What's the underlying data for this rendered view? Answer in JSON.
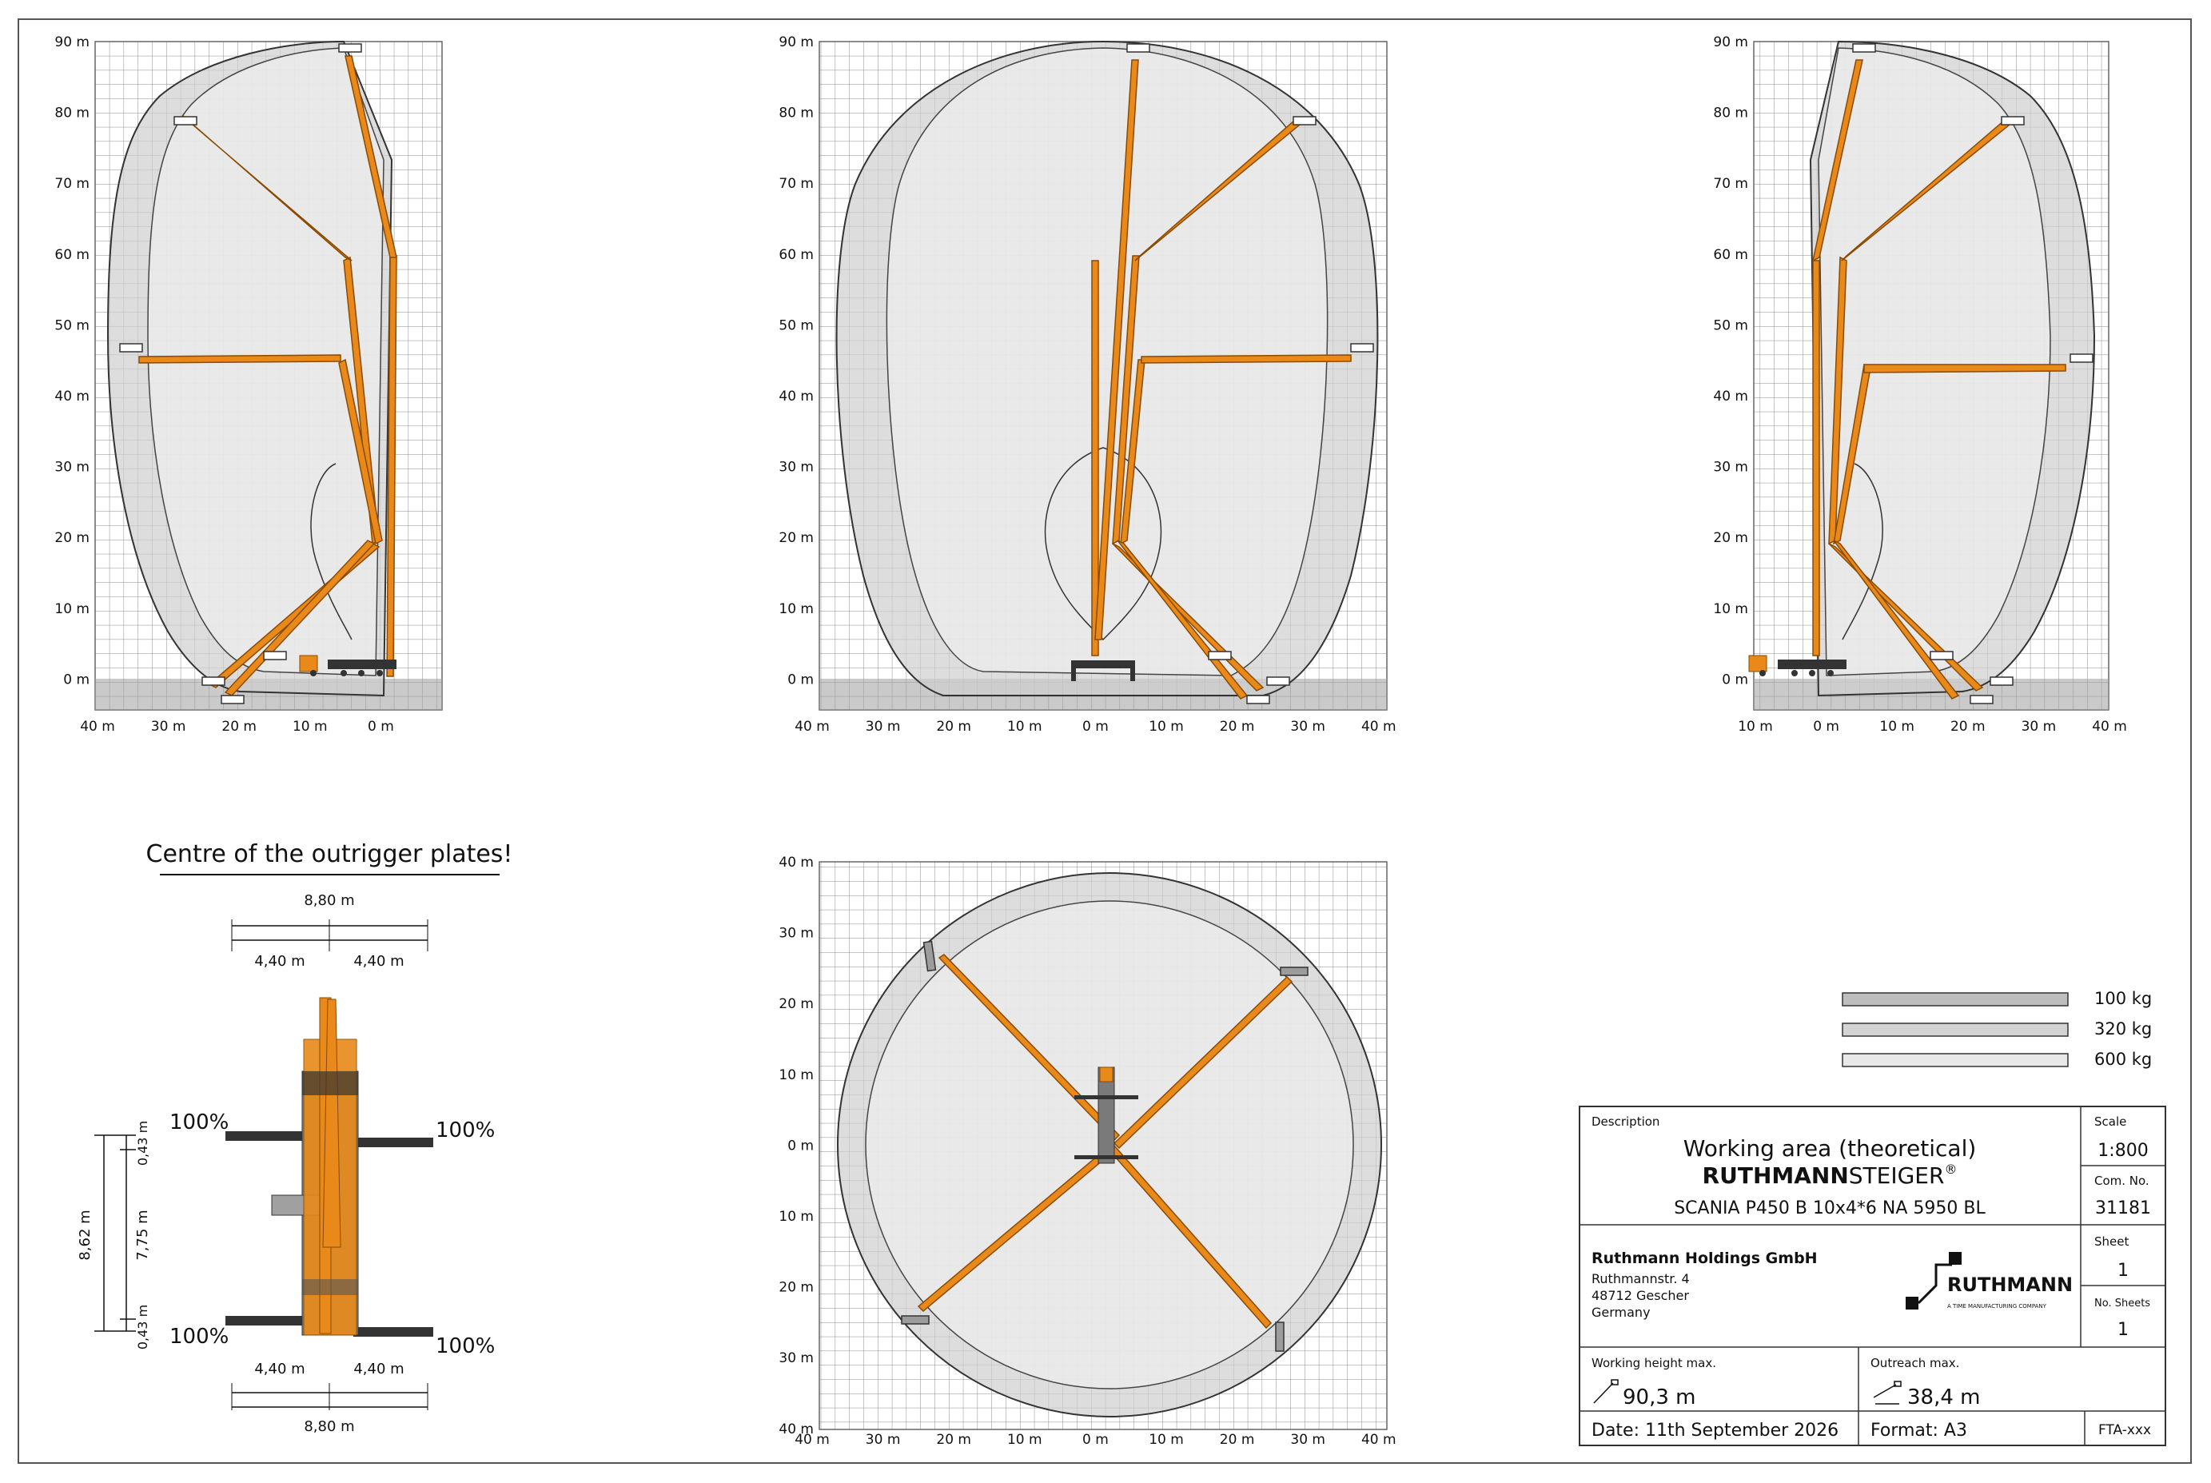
{
  "views": {
    "side_left": {
      "y_ticks": [
        "90 m",
        "80 m",
        "70 m",
        "60 m",
        "50 m",
        "40 m",
        "30 m",
        "20 m",
        "10 m",
        "0 m"
      ],
      "x_ticks": [
        "40 m",
        "30 m",
        "20 m",
        "10 m",
        "0 m"
      ]
    },
    "front": {
      "y_ticks": [
        "90 m",
        "80 m",
        "70 m",
        "60 m",
        "50 m",
        "40 m",
        "30 m",
        "20 m",
        "10 m",
        "0 m"
      ],
      "x_ticks": [
        "40 m",
        "30 m",
        "20 m",
        "10 m",
        "0 m",
        "10 m",
        "20 m",
        "30 m",
        "40 m"
      ]
    },
    "side_right": {
      "y_ticks": [
        "90 m",
        "80 m",
        "70 m",
        "60 m",
        "50 m",
        "40 m",
        "30 m",
        "20 m",
        "10 m",
        "0 m"
      ],
      "x_ticks": [
        "10 m",
        "0 m",
        "10 m",
        "20 m",
        "30 m",
        "40 m"
      ]
    },
    "top": {
      "y_ticks": [
        "40 m",
        "30 m",
        "20 m",
        "10 m",
        "0 m",
        "10 m",
        "20 m",
        "30 m",
        "40 m"
      ],
      "x_ticks": [
        "40 m",
        "30 m",
        "20 m",
        "10 m",
        "0 m",
        "10 m",
        "20 m",
        "30 m",
        "40 m"
      ]
    }
  },
  "outrigger": {
    "title": "Centre of the outrigger plates!",
    "top_total": "8,80 m",
    "top_left": "4,40 m",
    "top_right": "4,40 m",
    "bottom_left": "4,40 m",
    "bottom_right": "4,40 m",
    "bottom_total": "8,80 m",
    "total_length": "8,62 m",
    "upper_offset": "0,43 m",
    "middle": "7,75 m",
    "lower_offset": "0,43 m",
    "load_top_left": "100%",
    "load_top_right": "100%",
    "load_bottom_left": "100%",
    "load_bottom_right": "100%"
  },
  "legend": [
    {
      "label": "100 kg",
      "color": "#bdbdbd"
    },
    {
      "label": "320 kg",
      "color": "#d3d3d3"
    },
    {
      "label": "600 kg",
      "color": "#e8e8e8"
    }
  ],
  "title_block": {
    "description_label": "Description",
    "title": "Working area (theoretical)",
    "brand_bold": "RUTHMANN",
    "brand_light": "STEIGER",
    "brand_reg": "®",
    "model": "SCANIA P450 B 10x4*6 NA 5950 BL",
    "scale_label": "Scale",
    "scale": "1:800",
    "com_label": "Com. No.",
    "com_no": "31181",
    "sheet_label": "Sheet",
    "sheet": "1",
    "sheets_label": "No. Sheets",
    "sheets": "1",
    "company": "Ruthmann Holdings GmbH",
    "street": "Ruthmannstr. 4",
    "city": "48712 Gescher",
    "country": "Germany",
    "logo_text": "RUTHMANN",
    "logo_sub": "A TIME MANUFACTURING COMPANY",
    "height_label": "Working height max.",
    "height_value": "90,3 m",
    "outreach_label": "Outreach max.",
    "outreach_value": "38,4 m",
    "date": "Date:  11th September 2026",
    "format": "Format:  A3",
    "code": "FTA-xxx"
  },
  "colors": {
    "boom": "#e8891a",
    "boom_edge": "#8a4a00",
    "zone_outer": "#c4c4c4",
    "zone_inner": "#e6e6e6",
    "grid": "#8a8a8a"
  }
}
